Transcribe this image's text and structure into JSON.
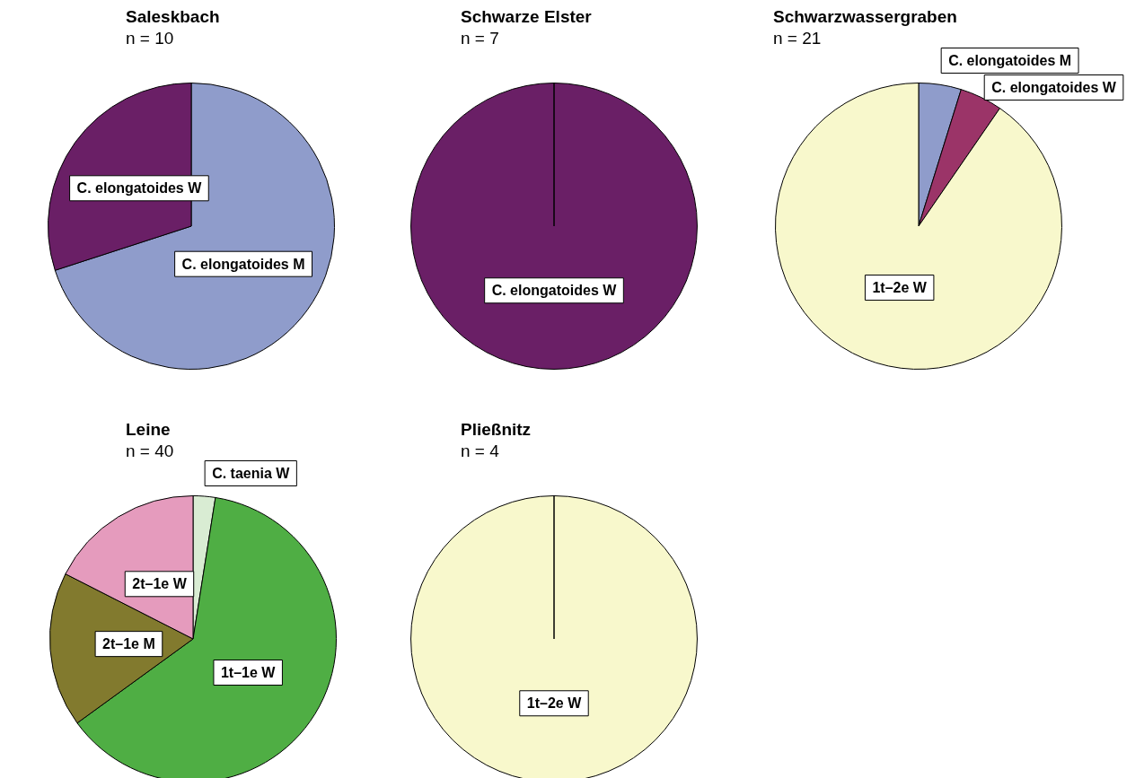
{
  "chart_data": [
    {
      "type": "pie",
      "title": "Saleskbach",
      "subtitle": "n = 10",
      "categories": [
        "C. elongatoides M",
        "C. elongatoides W"
      ],
      "values": [
        70,
        30
      ],
      "colors": [
        "#8f9ccb",
        "#6a1f66"
      ]
    },
    {
      "type": "pie",
      "title": "Schwarze Elster",
      "subtitle": "n = 7",
      "categories": [
        "C. elongatoides W"
      ],
      "values": [
        100
      ],
      "colors": [
        "#6a1f66"
      ]
    },
    {
      "type": "pie",
      "title": "Schwarzwassergraben",
      "subtitle": "n = 21",
      "categories": [
        "C. elongatoides M",
        "C. elongatoides W",
        "1t–2e W"
      ],
      "values": [
        4.8,
        4.8,
        90.4
      ],
      "colors": [
        "#8f9ccb",
        "#9b3468",
        "#f8f8cc"
      ]
    },
    {
      "type": "pie",
      "title": "Leine",
      "subtitle": "n = 40",
      "categories": [
        "C. taenia W",
        "1t–1e W",
        "2t–1e M",
        "2t–1e W"
      ],
      "values": [
        2.5,
        62.5,
        17.5,
        17.5
      ],
      "colors": [
        "#d9ecd3",
        "#4fae44",
        "#827a2e",
        "#e59bbd"
      ]
    },
    {
      "type": "pie",
      "title": "Pließnitz",
      "subtitle": "n = 4",
      "categories": [
        "1t–2e W"
      ],
      "values": [
        100
      ],
      "colors": [
        "#f8f8cc"
      ]
    }
  ]
}
